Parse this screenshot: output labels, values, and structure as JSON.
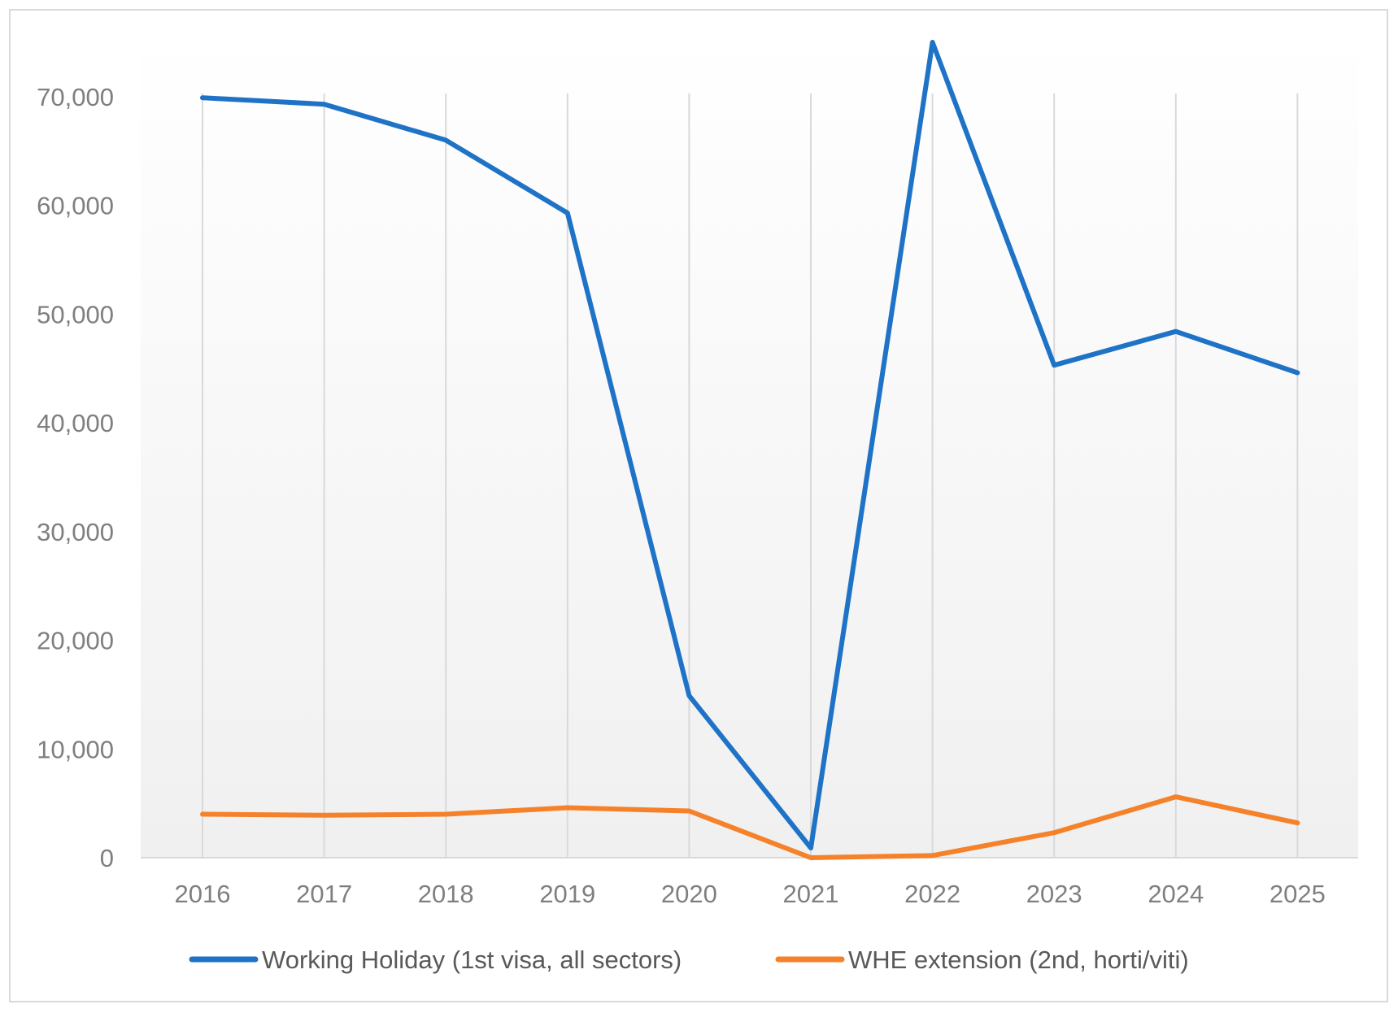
{
  "chart_data": {
    "type": "line",
    "title": "",
    "xlabel": "",
    "ylabel": "",
    "categories": [
      "2016",
      "2017",
      "2018",
      "2019",
      "2020",
      "2021",
      "2022",
      "2023",
      "2024",
      "2025"
    ],
    "y_ticks": [
      "0",
      "10,000",
      "20,000",
      "30,000",
      "40,000",
      "50,000",
      "60,000",
      "70,000"
    ],
    "ylim": [
      0,
      75000
    ],
    "grid": "vertical",
    "legend_position": "bottom",
    "series": [
      {
        "name": "Working Holiday (1st visa, all sectors)",
        "color": "#1f73c7",
        "values": [
          69900,
          69300,
          66000,
          59300,
          14900,
          900,
          75000,
          45300,
          48400,
          44600
        ]
      },
      {
        "name": "WHE extension (2nd, horti/viti)",
        "color": "#f5822a",
        "values": [
          4000,
          3900,
          4000,
          4600,
          4300,
          0,
          200,
          2300,
          5600,
          3200
        ]
      }
    ]
  }
}
